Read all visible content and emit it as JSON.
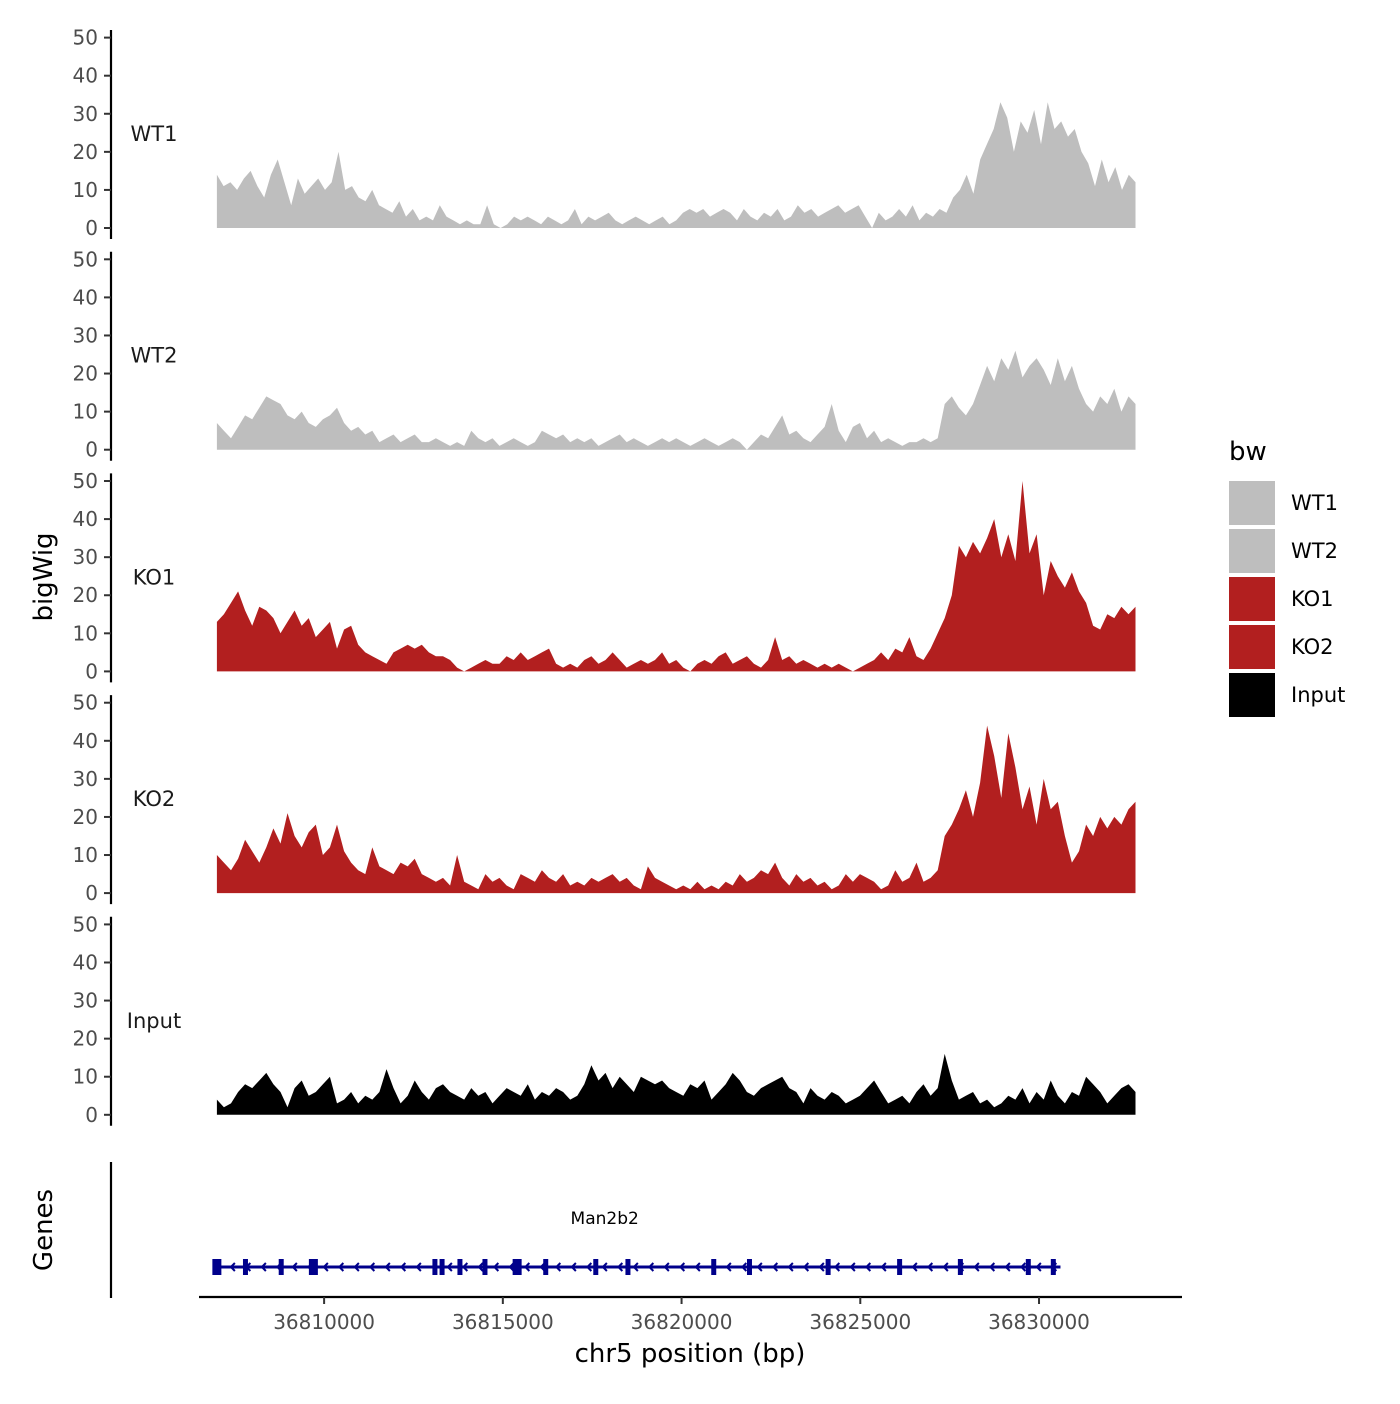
{
  "chart_data": {
    "type": "area",
    "title": "",
    "ylabel": "bigWig",
    "xlabel": "chr5 position (bp)",
    "chromosome": "chr5",
    "region": [
      36807000,
      36832700
    ],
    "xlim": [
      36806500,
      36834000
    ],
    "xticks": [
      36810000,
      36815000,
      36820000,
      36825000,
      36830000
    ],
    "xtick_labels": [
      "36810000",
      "36815000",
      "36820000",
      "36825000",
      "36830000"
    ],
    "ylim": [
      0,
      52
    ],
    "yticks": [
      0,
      10,
      20,
      30,
      40,
      50
    ],
    "ytick_labels": [
      "0",
      "10",
      "20",
      "30",
      "40",
      "50"
    ],
    "legend": {
      "title": "bw",
      "position": "right",
      "entries": [
        {
          "label": "WT1",
          "color": "#bebebe"
        },
        {
          "label": "WT2",
          "color": "#bebebe"
        },
        {
          "label": "KO1",
          "color": "#b21f1f"
        },
        {
          "label": "KO2",
          "color": "#b21f1f"
        },
        {
          "label": "Input",
          "color": "#000000"
        }
      ]
    },
    "series": [
      {
        "name": "WT1",
        "color": "#bebebe",
        "values": [
          14,
          11,
          12,
          10,
          13,
          15,
          11,
          8,
          14,
          18,
          12,
          6,
          13,
          9,
          11,
          13,
          10,
          12,
          20,
          10,
          11,
          8,
          7,
          10,
          6,
          5,
          4,
          7,
          3,
          5,
          2,
          3,
          2,
          6,
          3,
          2,
          1,
          2,
          1,
          1,
          6,
          1,
          0,
          1,
          3,
          2,
          3,
          2,
          1,
          3,
          2,
          1,
          2,
          5,
          1,
          3,
          2,
          3,
          4,
          2,
          1,
          2,
          3,
          2,
          1,
          2,
          3,
          1,
          2,
          4,
          5,
          4,
          5,
          3,
          4,
          5,
          4,
          2,
          5,
          3,
          2,
          4,
          3,
          5,
          2,
          3,
          6,
          4,
          5,
          3,
          4,
          5,
          6,
          4,
          5,
          6,
          3,
          0,
          4,
          2,
          3,
          5,
          3,
          6,
          2,
          4,
          3,
          5,
          4,
          8,
          10,
          14,
          9,
          18,
          22,
          26,
          33,
          29,
          20,
          28,
          25,
          31,
          22,
          33,
          26,
          28,
          24,
          26,
          20,
          17,
          11,
          18,
          12,
          16,
          10,
          14,
          12
        ]
      },
      {
        "name": "WT2",
        "color": "#bebebe",
        "values": [
          7,
          5,
          3,
          6,
          9,
          8,
          11,
          14,
          13,
          12,
          9,
          8,
          10,
          7,
          6,
          8,
          9,
          11,
          7,
          5,
          6,
          4,
          5,
          2,
          3,
          4,
          2,
          3,
          4,
          2,
          2,
          3,
          2,
          1,
          2,
          1,
          5,
          3,
          2,
          3,
          1,
          2,
          3,
          2,
          1,
          2,
          5,
          4,
          3,
          4,
          2,
          3,
          2,
          3,
          1,
          2,
          3,
          4,
          2,
          3,
          2,
          1,
          2,
          3,
          2,
          3,
          2,
          1,
          2,
          3,
          2,
          1,
          2,
          3,
          2,
          0,
          2,
          4,
          3,
          6,
          9,
          4,
          5,
          3,
          2,
          4,
          6,
          12,
          5,
          2,
          6,
          7,
          3,
          5,
          2,
          3,
          2,
          1,
          2,
          2,
          3,
          2,
          3,
          12,
          14,
          11,
          9,
          12,
          17,
          22,
          18,
          24,
          21,
          26,
          19,
          22,
          24,
          21,
          17,
          24,
          18,
          22,
          16,
          12,
          10,
          14,
          12,
          16,
          10,
          14,
          12
        ]
      },
      {
        "name": "KO1",
        "color": "#b21f1f",
        "values": [
          13,
          15,
          18,
          21,
          16,
          12,
          17,
          16,
          14,
          10,
          13,
          16,
          12,
          14,
          9,
          11,
          13,
          6,
          11,
          12,
          7,
          5,
          4,
          3,
          2,
          5,
          6,
          7,
          6,
          7,
          5,
          4,
          4,
          3,
          1,
          0,
          1,
          2,
          3,
          2,
          2,
          4,
          3,
          5,
          3,
          4,
          5,
          6,
          2,
          1,
          2,
          1,
          3,
          4,
          2,
          3,
          5,
          3,
          1,
          2,
          3,
          2,
          3,
          5,
          2,
          3,
          1,
          0,
          2,
          3,
          2,
          4,
          5,
          2,
          3,
          4,
          2,
          1,
          3,
          9,
          3,
          4,
          2,
          3,
          2,
          1,
          2,
          1,
          2,
          1,
          0,
          1,
          2,
          3,
          5,
          3,
          6,
          5,
          9,
          4,
          3,
          6,
          10,
          14,
          20,
          33,
          30,
          34,
          31,
          35,
          40,
          30,
          36,
          29,
          50,
          31,
          36,
          20,
          29,
          25,
          22,
          26,
          21,
          18,
          12,
          11,
          15,
          14,
          17,
          15,
          17
        ]
      },
      {
        "name": "KO2",
        "color": "#b21f1f",
        "values": [
          10,
          8,
          6,
          9,
          14,
          11,
          8,
          12,
          17,
          13,
          21,
          15,
          12,
          16,
          18,
          10,
          12,
          18,
          11,
          8,
          6,
          5,
          12,
          7,
          6,
          5,
          8,
          7,
          9,
          5,
          4,
          3,
          4,
          2,
          10,
          3,
          2,
          1,
          5,
          3,
          4,
          2,
          1,
          5,
          4,
          3,
          6,
          4,
          3,
          5,
          2,
          3,
          2,
          4,
          3,
          4,
          5,
          3,
          4,
          2,
          1,
          7,
          4,
          3,
          2,
          1,
          2,
          1,
          3,
          1,
          2,
          1,
          3,
          2,
          5,
          3,
          4,
          6,
          5,
          8,
          4,
          2,
          5,
          3,
          4,
          2,
          3,
          1,
          2,
          5,
          3,
          5,
          4,
          3,
          1,
          2,
          6,
          3,
          4,
          8,
          3,
          4,
          6,
          15,
          18,
          22,
          27,
          20,
          29,
          44,
          36,
          25,
          42,
          33,
          22,
          28,
          18,
          30,
          22,
          24,
          15,
          8,
          11,
          18,
          15,
          20,
          17,
          20,
          18,
          22,
          24
        ]
      },
      {
        "name": "Input",
        "color": "#000000",
        "values": [
          4,
          2,
          3,
          6,
          8,
          7,
          9,
          11,
          8,
          6,
          2,
          7,
          9,
          5,
          6,
          8,
          10,
          3,
          4,
          6,
          3,
          5,
          4,
          6,
          12,
          7,
          3,
          5,
          9,
          6,
          4,
          7,
          8,
          6,
          5,
          4,
          7,
          5,
          6,
          3,
          5,
          7,
          6,
          5,
          8,
          4,
          6,
          5,
          7,
          6,
          4,
          5,
          8,
          13,
          9,
          11,
          7,
          10,
          8,
          6,
          10,
          9,
          8,
          9,
          7,
          6,
          5,
          8,
          7,
          9,
          4,
          6,
          8,
          11,
          9,
          6,
          5,
          7,
          8,
          9,
          10,
          7,
          6,
          3,
          7,
          5,
          4,
          6,
          5,
          3,
          4,
          5,
          7,
          9,
          6,
          3,
          4,
          5,
          3,
          6,
          8,
          5,
          7,
          16,
          9,
          4,
          5,
          6,
          3,
          4,
          2,
          3,
          5,
          4,
          7,
          3,
          6,
          4,
          9,
          5,
          3,
          6,
          5,
          10,
          8,
          6,
          3,
          5,
          7,
          8,
          6
        ]
      }
    ],
    "gene_track": {
      "label": "Genes",
      "gene_name": "Man2b2",
      "strand": "-",
      "start": 36807000,
      "end": 36830600,
      "color": "#00008b",
      "exon_starts": [
        36807000,
        36807800,
        36808800,
        36809700,
        36813100,
        36813300,
        36813800,
        36814500,
        36815400,
        36816200,
        36817600,
        36818500,
        36820900,
        36821900,
        36824100,
        36826100,
        36827800,
        36829700,
        36830400
      ]
    }
  }
}
